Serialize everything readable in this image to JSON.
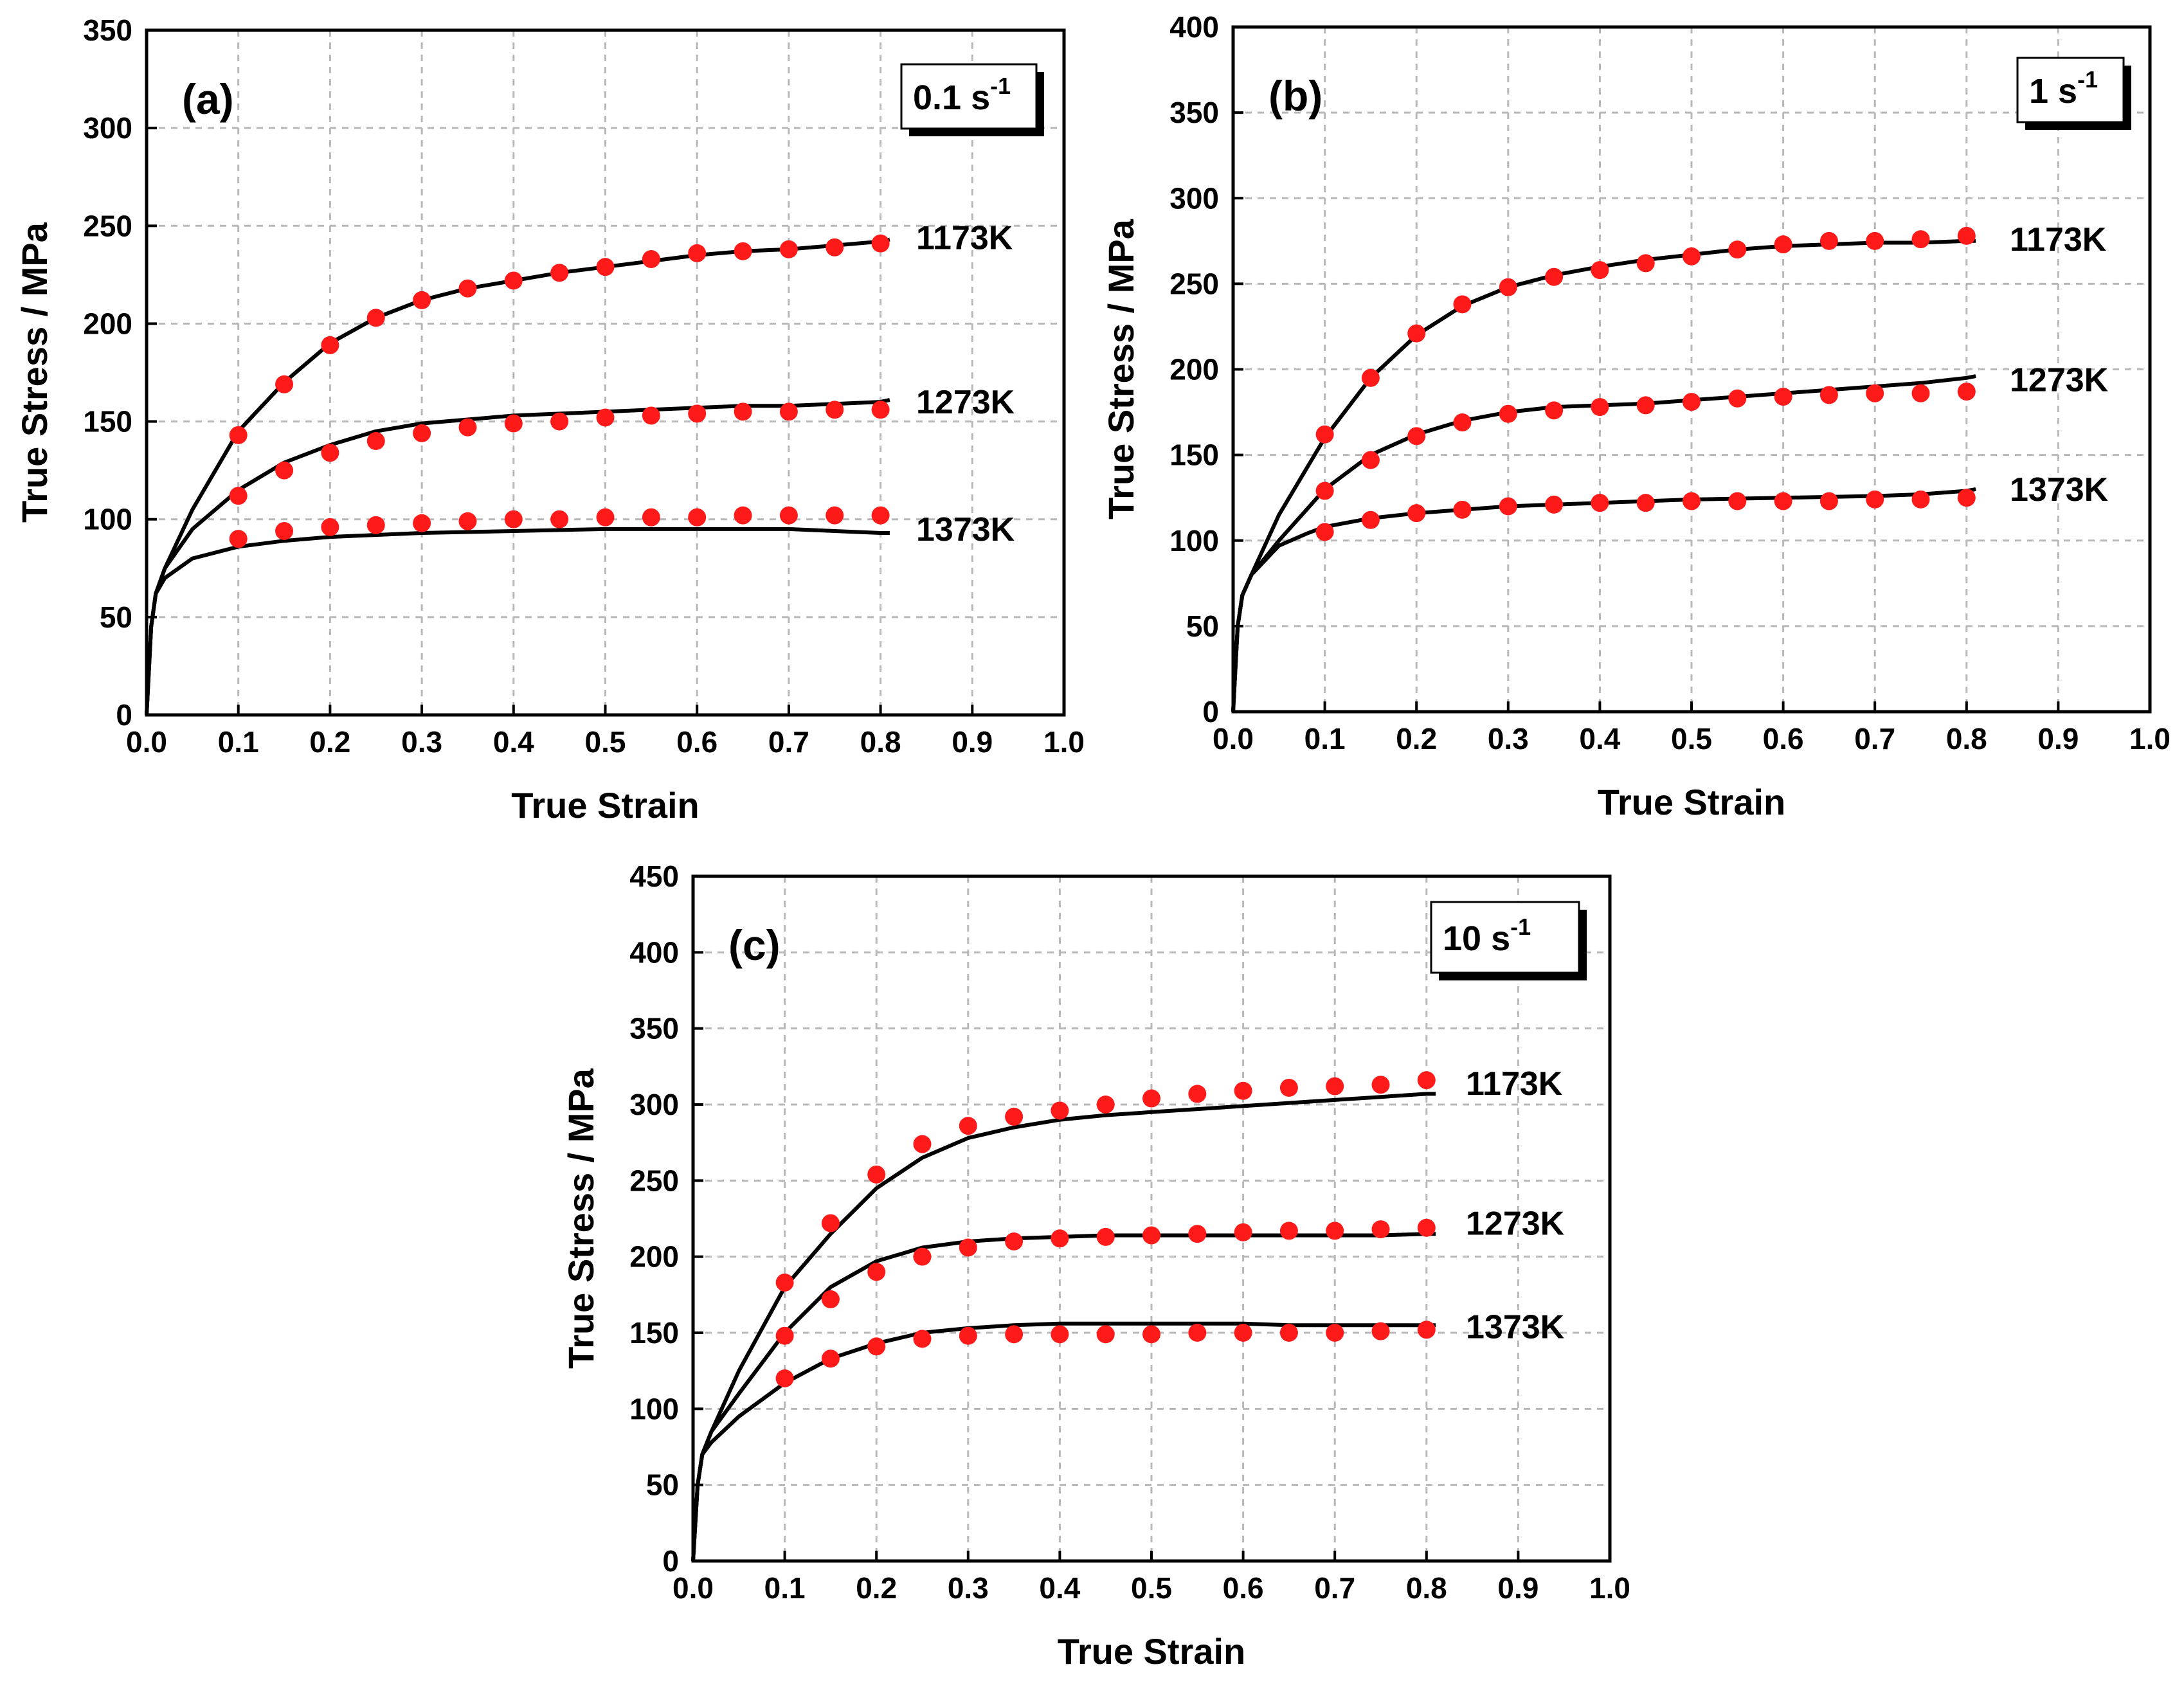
{
  "chart_data": [
    {
      "type": "line",
      "panel": "(a)",
      "strain_rate": "0.1 s",
      "strain_rate_exp": "-1",
      "xlabel": "True Strain",
      "ylabel": "True Stress / MPa",
      "xlim": [
        0,
        1.0
      ],
      "ylim": [
        0,
        350
      ],
      "xticks": [
        "0.0",
        "0.1",
        "0.2",
        "0.3",
        "0.4",
        "0.5",
        "0.6",
        "0.7",
        "0.8",
        "0.9",
        "1.0"
      ],
      "yticks": [
        "0",
        "50",
        "100",
        "150",
        "200",
        "250",
        "300",
        "350"
      ],
      "grid": true,
      "series": [
        {
          "name": "1173K",
          "label_y": 244,
          "model": {
            "x": [
              0,
              0.005,
              0.01,
              0.02,
              0.05,
              0.1,
              0.15,
              0.2,
              0.25,
              0.3,
              0.35,
              0.4,
              0.45,
              0.5,
              0.55,
              0.6,
              0.65,
              0.7,
              0.75,
              0.8,
              0.81
            ],
            "y": [
              0,
              45,
              62,
              75,
              105,
              145,
              170,
              190,
              203,
              212,
              218,
              222,
              226,
              229,
              232,
              235,
              237,
              238,
              240,
              242,
              243
            ]
          },
          "experimental": {
            "x": [
              0.1,
              0.15,
              0.2,
              0.25,
              0.3,
              0.35,
              0.4,
              0.45,
              0.5,
              0.55,
              0.6,
              0.65,
              0.7,
              0.75,
              0.8
            ],
            "y": [
              143,
              169,
              189,
              203,
              212,
              218,
              222,
              226,
              229,
              233,
              236,
              237,
              238,
              239,
              241
            ]
          }
        },
        {
          "name": "1273K",
          "label_y": 160,
          "model": {
            "x": [
              0,
              0.005,
              0.01,
              0.02,
              0.05,
              0.1,
              0.15,
              0.2,
              0.25,
              0.3,
              0.35,
              0.4,
              0.45,
              0.5,
              0.55,
              0.6,
              0.65,
              0.7,
              0.75,
              0.8,
              0.81
            ],
            "y": [
              0,
              45,
              62,
              75,
              95,
              115,
              129,
              138,
              145,
              149,
              151,
              153,
              154,
              155,
              156,
              157,
              158,
              158,
              159,
              160,
              161
            ]
          },
          "experimental": {
            "x": [
              0.1,
              0.15,
              0.2,
              0.25,
              0.3,
              0.35,
              0.4,
              0.45,
              0.5,
              0.55,
              0.6,
              0.65,
              0.7,
              0.75,
              0.8
            ],
            "y": [
              112,
              125,
              134,
              140,
              144,
              147,
              149,
              150,
              152,
              153,
              154,
              155,
              155,
              156,
              156
            ]
          }
        },
        {
          "name": "1373K",
          "label_y": 95,
          "model": {
            "x": [
              0,
              0.005,
              0.01,
              0.02,
              0.05,
              0.1,
              0.15,
              0.2,
              0.3,
              0.4,
              0.5,
              0.6,
              0.7,
              0.75,
              0.8,
              0.81
            ],
            "y": [
              0,
              45,
              62,
              70,
              80,
              86,
              89,
              91,
              93,
              94,
              95,
              95,
              95,
              94,
              93,
              93
            ]
          },
          "experimental": {
            "x": [
              0.1,
              0.15,
              0.2,
              0.25,
              0.3,
              0.35,
              0.4,
              0.45,
              0.5,
              0.55,
              0.6,
              0.65,
              0.7,
              0.75,
              0.8
            ],
            "y": [
              90,
              94,
              96,
              97,
              98,
              99,
              100,
              100,
              101,
              101,
              101,
              102,
              102,
              102,
              102
            ]
          }
        }
      ]
    },
    {
      "type": "line",
      "panel": "(b)",
      "strain_rate": "1 s",
      "strain_rate_exp": "-1",
      "xlabel": "True Strain",
      "ylabel": "True Stress / MPa",
      "xlim": [
        0,
        1.0
      ],
      "ylim": [
        0,
        400
      ],
      "xticks": [
        "0.0",
        "0.1",
        "0.2",
        "0.3",
        "0.4",
        "0.5",
        "0.6",
        "0.7",
        "0.8",
        "0.9",
        "1.0"
      ],
      "yticks": [
        "0",
        "50",
        "100",
        "150",
        "200",
        "250",
        "300",
        "350",
        "400"
      ],
      "grid": true,
      "series": [
        {
          "name": "1173K",
          "label_y": 276,
          "model": {
            "x": [
              0,
              0.005,
              0.01,
              0.02,
              0.05,
              0.1,
              0.15,
              0.2,
              0.25,
              0.3,
              0.35,
              0.4,
              0.45,
              0.5,
              0.55,
              0.6,
              0.65,
              0.7,
              0.75,
              0.8,
              0.81
            ],
            "y": [
              0,
              50,
              68,
              80,
              115,
              160,
              195,
              220,
              237,
              248,
              255,
              260,
              264,
              267,
              270,
              272,
              273,
              274,
              274,
              275,
              275
            ]
          },
          "experimental": {
            "x": [
              0.1,
              0.15,
              0.2,
              0.25,
              0.3,
              0.35,
              0.4,
              0.45,
              0.5,
              0.55,
              0.6,
              0.65,
              0.7,
              0.75,
              0.8
            ],
            "y": [
              162,
              195,
              221,
              238,
              248,
              254,
              258,
              262,
              266,
              270,
              273,
              275,
              275,
              276,
              278
            ]
          }
        },
        {
          "name": "1273K",
          "label_y": 194,
          "model": {
            "x": [
              0,
              0.005,
              0.01,
              0.02,
              0.05,
              0.1,
              0.15,
              0.2,
              0.25,
              0.3,
              0.35,
              0.4,
              0.45,
              0.5,
              0.55,
              0.6,
              0.65,
              0.7,
              0.75,
              0.8,
              0.81
            ],
            "y": [
              0,
              50,
              68,
              80,
              100,
              130,
              150,
              162,
              170,
              175,
              178,
              179,
              180,
              182,
              184,
              186,
              188,
              190,
              192,
              195,
              196
            ]
          },
          "experimental": {
            "x": [
              0.1,
              0.15,
              0.2,
              0.25,
              0.3,
              0.35,
              0.4,
              0.45,
              0.5,
              0.55,
              0.6,
              0.65,
              0.7,
              0.75,
              0.8
            ],
            "y": [
              129,
              147,
              161,
              169,
              174,
              176,
              178,
              179,
              181,
              183,
              184,
              185,
              186,
              186,
              187
            ]
          }
        },
        {
          "name": "1373K",
          "label_y": 130,
          "model": {
            "x": [
              0,
              0.005,
              0.01,
              0.02,
              0.05,
              0.08,
              0.1,
              0.15,
              0.2,
              0.3,
              0.4,
              0.5,
              0.6,
              0.7,
              0.75,
              0.8,
              0.81
            ],
            "y": [
              0,
              50,
              68,
              80,
              97,
              104,
              108,
              113,
              116,
              120,
              122,
              124,
              125,
              126,
              127,
              129,
              130
            ]
          },
          "experimental": {
            "x": [
              0.1,
              0.15,
              0.2,
              0.25,
              0.3,
              0.35,
              0.4,
              0.45,
              0.5,
              0.55,
              0.6,
              0.65,
              0.7,
              0.75,
              0.8
            ],
            "y": [
              105,
              112,
              116,
              118,
              120,
              121,
              122,
              122,
              123,
              123,
              123,
              123,
              124,
              124,
              125
            ]
          }
        }
      ]
    },
    {
      "type": "line",
      "panel": "(c)",
      "strain_rate": "10 s",
      "strain_rate_exp": "-1",
      "xlabel": "True Strain",
      "ylabel": "True Stress / MPa",
      "xlim": [
        0,
        1.0
      ],
      "ylim": [
        0,
        450
      ],
      "xticks": [
        "0.0",
        "0.1",
        "0.2",
        "0.3",
        "0.4",
        "0.5",
        "0.6",
        "0.7",
        "0.8",
        "0.9",
        "1.0"
      ],
      "yticks": [
        "0",
        "50",
        "100",
        "150",
        "200",
        "250",
        "300",
        "350",
        "400",
        "450"
      ],
      "grid": true,
      "series": [
        {
          "name": "1173K",
          "label_y": 314,
          "model": {
            "x": [
              0,
              0.005,
              0.01,
              0.02,
              0.05,
              0.1,
              0.15,
              0.2,
              0.25,
              0.3,
              0.35,
              0.4,
              0.45,
              0.5,
              0.55,
              0.6,
              0.65,
              0.7,
              0.75,
              0.8,
              0.81
            ],
            "y": [
              0,
              50,
              70,
              85,
              125,
              180,
              215,
              245,
              265,
              278,
              285,
              290,
              293,
              295,
              297,
              299,
              301,
              303,
              305,
              307,
              307
            ]
          },
          "experimental": {
            "x": [
              0.1,
              0.15,
              0.2,
              0.25,
              0.3,
              0.35,
              0.4,
              0.45,
              0.5,
              0.55,
              0.6,
              0.65,
              0.7,
              0.75,
              0.8
            ],
            "y": [
              183,
              222,
              254,
              274,
              286,
              292,
              296,
              300,
              304,
              307,
              309,
              311,
              312,
              313,
              316
            ]
          }
        },
        {
          "name": "1273K",
          "label_y": 222,
          "model": {
            "x": [
              0,
              0.005,
              0.01,
              0.02,
              0.05,
              0.1,
              0.15,
              0.2,
              0.25,
              0.3,
              0.35,
              0.4,
              0.45,
              0.5,
              0.55,
              0.6,
              0.65,
              0.7,
              0.75,
              0.8,
              0.81
            ],
            "y": [
              0,
              50,
              70,
              85,
              110,
              150,
              180,
              197,
              206,
              210,
              212,
              213,
              214,
              214,
              214,
              214,
              214,
              214,
              214,
              215,
              215
            ]
          },
          "experimental": {
            "x": [
              0.1,
              0.15,
              0.2,
              0.25,
              0.3,
              0.35,
              0.4,
              0.45,
              0.5,
              0.55,
              0.6,
              0.65,
              0.7,
              0.75,
              0.8
            ],
            "y": [
              148,
              172,
              190,
              200,
              206,
              210,
              212,
              213,
              214,
              215,
              216,
              217,
              217,
              218,
              219
            ]
          }
        },
        {
          "name": "1373K",
          "label_y": 154,
          "model": {
            "x": [
              0,
              0.005,
              0.01,
              0.02,
              0.05,
              0.1,
              0.15,
              0.2,
              0.25,
              0.3,
              0.35,
              0.4,
              0.45,
              0.5,
              0.55,
              0.6,
              0.65,
              0.7,
              0.75,
              0.8,
              0.81
            ],
            "y": [
              0,
              50,
              70,
              78,
              95,
              117,
              133,
              143,
              150,
              153,
              155,
              156,
              156,
              156,
              156,
              156,
              155,
              155,
              155,
              155,
              155
            ]
          },
          "experimental": {
            "x": [
              0.1,
              0.15,
              0.2,
              0.25,
              0.3,
              0.35,
              0.4,
              0.45,
              0.5,
              0.55,
              0.6,
              0.65,
              0.7,
              0.75,
              0.8
            ],
            "y": [
              120,
              133,
              141,
              146,
              148,
              149,
              149,
              149,
              149,
              150,
              150,
              150,
              150,
              151,
              152
            ]
          }
        }
      ]
    }
  ]
}
